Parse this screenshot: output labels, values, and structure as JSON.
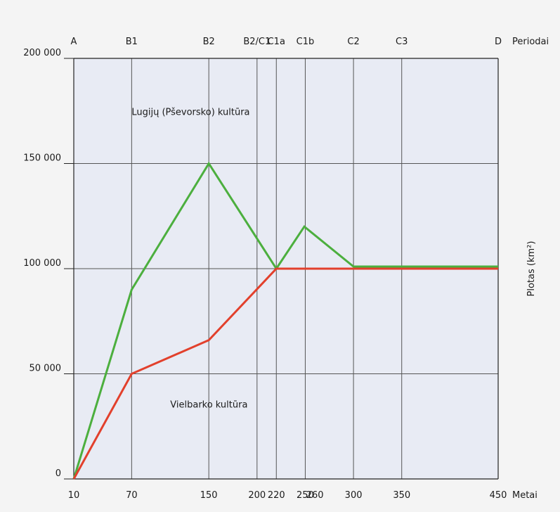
{
  "chart_data": {
    "type": "line",
    "y_axis_label": "Plotas (km²)",
    "x_axis_label": "Metai",
    "period_axis_label": "Periodai",
    "ylim": [
      0,
      200000
    ],
    "xlim": [
      10,
      450
    ],
    "y_ticks": [
      {
        "value": 0,
        "label": "0"
      },
      {
        "value": 50000,
        "label": "50 000"
      },
      {
        "value": 100000,
        "label": "100 000"
      },
      {
        "value": 150000,
        "label": "150 000"
      },
      {
        "value": 200000,
        "label": "200 000"
      }
    ],
    "x_ticks": [
      {
        "value": 10,
        "label": "10"
      },
      {
        "value": 70,
        "label": "70"
      },
      {
        "value": 150,
        "label": "150"
      },
      {
        "value": 200,
        "label": "200"
      },
      {
        "value": 220,
        "label": "220"
      },
      {
        "value": 250,
        "label": "250"
      },
      {
        "value": 260,
        "label": "260"
      },
      {
        "value": 300,
        "label": "300"
      },
      {
        "value": 350,
        "label": "350"
      },
      {
        "value": 450,
        "label": "450"
      }
    ],
    "periods": [
      {
        "value": 10,
        "label": "A"
      },
      {
        "value": 70,
        "label": "B1"
      },
      {
        "value": 150,
        "label": "B2"
      },
      {
        "value": 200,
        "label": "B2/C1"
      },
      {
        "value": 220,
        "label": "C1a"
      },
      {
        "value": 250,
        "label": "C1b"
      },
      {
        "value": 300,
        "label": "C2"
      },
      {
        "value": 350,
        "label": "C3"
      },
      {
        "value": 450,
        "label": "D"
      }
    ],
    "series": [
      {
        "name": "Lugijų (Pševorsko) kultūra",
        "color": "#4caf3e",
        "points": [
          [
            10,
            0
          ],
          [
            70,
            90000
          ],
          [
            150,
            150000
          ],
          [
            220,
            100000
          ],
          [
            249,
            120000
          ],
          [
            300,
            101000
          ],
          [
            450,
            101000
          ]
        ]
      },
      {
        "name": "Vielbarko kultūra",
        "color": "#e2402c",
        "points": [
          [
            10,
            0
          ],
          [
            70,
            50000
          ],
          [
            150,
            66000
          ],
          [
            220,
            100000
          ],
          [
            450,
            100000
          ]
        ]
      }
    ],
    "annotations": [
      {
        "text": "Lugijų (Pševorsko) kultūra",
        "x": 70,
        "y": 173000,
        "series": 0
      },
      {
        "text": "Vielbarko kultūra",
        "x": 110,
        "y": 34000,
        "series": 1
      }
    ],
    "grid": true
  }
}
